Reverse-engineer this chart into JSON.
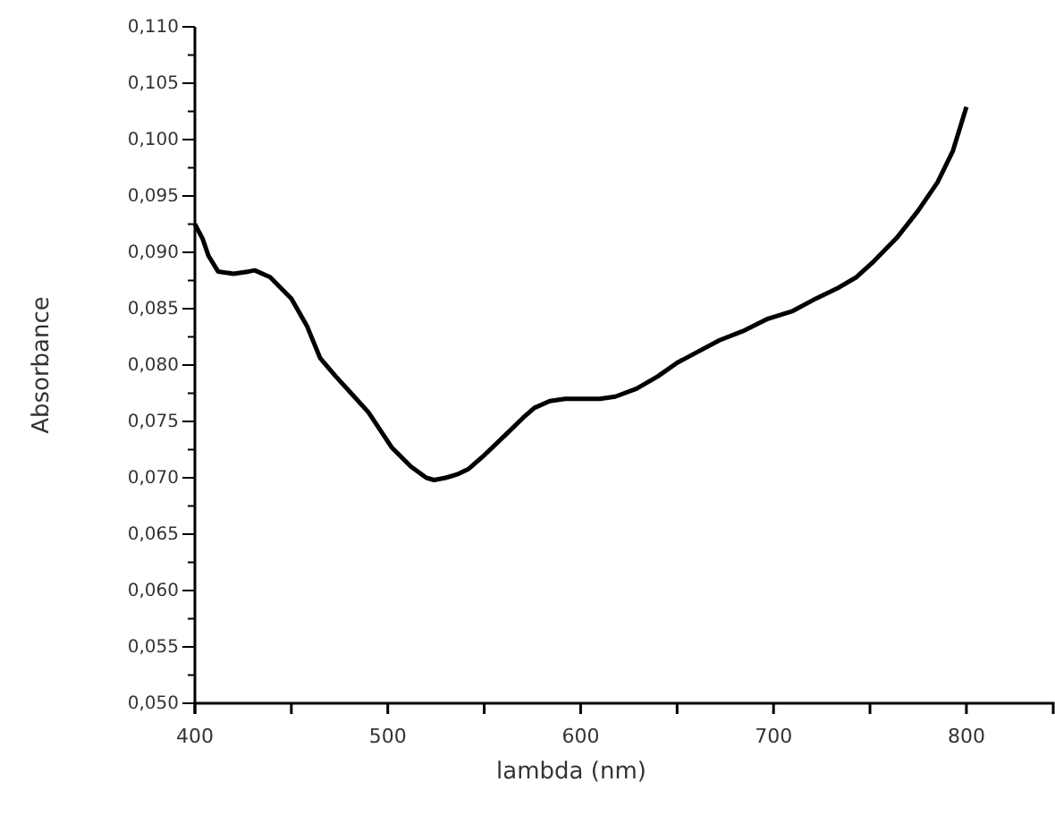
{
  "chart_data": {
    "type": "line",
    "xlabel": "lambda (nm)",
    "ylabel": "Absorbance",
    "x": [
      400,
      404,
      407,
      412,
      420,
      428,
      431,
      439,
      450,
      458,
      465,
      473,
      481,
      490,
      502,
      512,
      520,
      524,
      530,
      536,
      542,
      550,
      561,
      570,
      576,
      584,
      592,
      600,
      610,
      618,
      629,
      640,
      650,
      661,
      672,
      684,
      697,
      710,
      722,
      733,
      743,
      752,
      764,
      775,
      785,
      793,
      800
    ],
    "series": [
      {
        "color": "#000000",
        "values": [
          0.0925,
          0.0912,
          0.0897,
          0.0883,
          0.0881,
          0.0883,
          0.0884,
          0.0878,
          0.0859,
          0.0835,
          0.0806,
          0.079,
          0.0775,
          0.0758,
          0.0727,
          0.071,
          0.07,
          0.0698,
          0.07,
          0.0703,
          0.0708,
          0.072,
          0.0738,
          0.0753,
          0.0762,
          0.0768,
          0.077,
          0.077,
          0.077,
          0.0772,
          0.0779,
          0.079,
          0.0802,
          0.0812,
          0.0822,
          0.083,
          0.0841,
          0.0848,
          0.0859,
          0.0868,
          0.0878,
          0.0892,
          0.0913,
          0.0937,
          0.0962,
          0.099,
          0.1029
        ]
      }
    ],
    "xlim": [
      400,
      845
    ],
    "xticks": [
      400,
      {
        "value": 450,
        "label": null
      },
      500,
      {
        "value": 550,
        "label": null
      },
      600,
      {
        "value": 650,
        "label": null
      },
      700,
      {
        "value": 750,
        "label": null
      },
      800
    ],
    "ylim": [
      0.05,
      0.11
    ],
    "yticks": [
      {
        "value": 0.05,
        "label": "0,050"
      },
      {
        "value": 0.0525,
        "label": null
      },
      {
        "value": 0.055,
        "label": "0,055"
      },
      {
        "value": 0.0575,
        "label": null
      },
      {
        "value": 0.06,
        "label": "0,060"
      },
      {
        "value": 0.0625,
        "label": null
      },
      {
        "value": 0.065,
        "label": "0,065"
      },
      {
        "value": 0.0675,
        "label": null
      },
      {
        "value": 0.07,
        "label": "0,070"
      },
      {
        "value": 0.0725,
        "label": null
      },
      {
        "value": 0.075,
        "label": "0,075"
      },
      {
        "value": 0.0775,
        "label": null
      },
      {
        "value": 0.08,
        "label": "0,080"
      },
      {
        "value": 0.0825,
        "label": null
      },
      {
        "value": 0.085,
        "label": "0,085"
      },
      {
        "value": 0.0875,
        "label": null
      },
      {
        "value": 0.09,
        "label": "0,090"
      },
      {
        "value": 0.0925,
        "label": null
      },
      {
        "value": 0.095,
        "label": "0,095"
      },
      {
        "value": 0.0975,
        "label": null
      },
      {
        "value": 0.1,
        "label": "0,100"
      },
      {
        "value": 0.1025,
        "label": null
      },
      {
        "value": 0.105,
        "label": "0,105"
      },
      {
        "value": 0.1075,
        "label": null
      },
      {
        "value": 0.11,
        "label": "0,110"
      }
    ],
    "grid": false,
    "marker": "none",
    "line_style": "solid"
  }
}
